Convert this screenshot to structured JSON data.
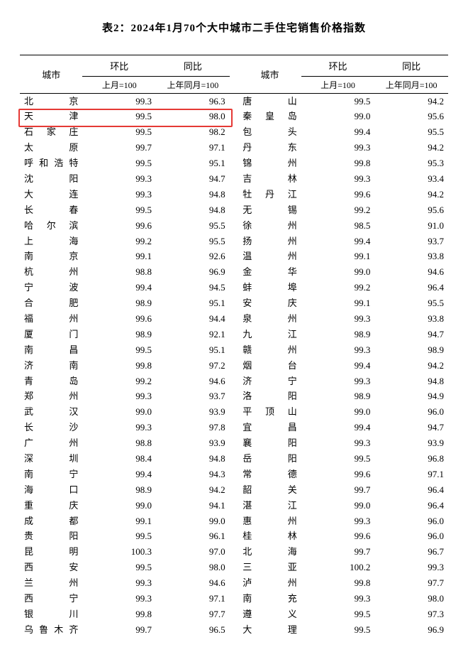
{
  "title": "表2：2024年1月70个大中城市二手住宅销售价格指数",
  "headers": {
    "city": "城市",
    "mom": "环比",
    "yoy": "同比",
    "mom_sub": "上月=100",
    "yoy_sub": "上年同月=100"
  },
  "highlight_color": "#e53935",
  "highlight_row_index": 1,
  "rows_left": [
    {
      "city": "北　　京",
      "mom": "99.3",
      "yoy": "96.3"
    },
    {
      "city": "天　　津",
      "mom": "99.5",
      "yoy": "98.0"
    },
    {
      "city": "石 家 庄",
      "mom": "99.5",
      "yoy": "98.2"
    },
    {
      "city": "太　　原",
      "mom": "99.7",
      "yoy": "97.1"
    },
    {
      "city": "呼和浩特",
      "mom": "99.5",
      "yoy": "95.1"
    },
    {
      "city": "沈　　阳",
      "mom": "99.3",
      "yoy": "94.7"
    },
    {
      "city": "大　　连",
      "mom": "99.3",
      "yoy": "94.8"
    },
    {
      "city": "长　　春",
      "mom": "99.5",
      "yoy": "94.8"
    },
    {
      "city": "哈 尔 滨",
      "mom": "99.6",
      "yoy": "95.5"
    },
    {
      "city": "上　　海",
      "mom": "99.2",
      "yoy": "95.5"
    },
    {
      "city": "南　　京",
      "mom": "99.1",
      "yoy": "92.6"
    },
    {
      "city": "杭　　州",
      "mom": "98.8",
      "yoy": "96.9"
    },
    {
      "city": "宁　　波",
      "mom": "99.4",
      "yoy": "94.5"
    },
    {
      "city": "合　　肥",
      "mom": "98.9",
      "yoy": "95.1"
    },
    {
      "city": "福　　州",
      "mom": "99.6",
      "yoy": "94.4"
    },
    {
      "city": "厦　　门",
      "mom": "98.9",
      "yoy": "92.1"
    },
    {
      "city": "南　　昌",
      "mom": "99.5",
      "yoy": "95.1"
    },
    {
      "city": "济　　南",
      "mom": "99.8",
      "yoy": "97.2"
    },
    {
      "city": "青　　岛",
      "mom": "99.2",
      "yoy": "94.6"
    },
    {
      "city": "郑　　州",
      "mom": "99.3",
      "yoy": "93.7"
    },
    {
      "city": "武　　汉",
      "mom": "99.0",
      "yoy": "93.9"
    },
    {
      "city": "长　　沙",
      "mom": "99.3",
      "yoy": "97.8"
    },
    {
      "city": "广　　州",
      "mom": "98.8",
      "yoy": "93.9"
    },
    {
      "city": "深　　圳",
      "mom": "98.4",
      "yoy": "94.8"
    },
    {
      "city": "南　　宁",
      "mom": "99.4",
      "yoy": "94.3"
    },
    {
      "city": "海　　口",
      "mom": "98.9",
      "yoy": "94.2"
    },
    {
      "city": "重　　庆",
      "mom": "99.0",
      "yoy": "94.1"
    },
    {
      "city": "成　　都",
      "mom": "99.1",
      "yoy": "99.0"
    },
    {
      "city": "贵　　阳",
      "mom": "99.5",
      "yoy": "96.1"
    },
    {
      "city": "昆　　明",
      "mom": "100.3",
      "yoy": "97.0"
    },
    {
      "city": "西　　安",
      "mom": "99.5",
      "yoy": "98.0"
    },
    {
      "city": "兰　　州",
      "mom": "99.3",
      "yoy": "94.6"
    },
    {
      "city": "西　　宁",
      "mom": "99.3",
      "yoy": "97.1"
    },
    {
      "city": "银　　川",
      "mom": "99.8",
      "yoy": "97.7"
    },
    {
      "city": "乌鲁木齐",
      "mom": "99.7",
      "yoy": "96.5"
    }
  ],
  "rows_right": [
    {
      "city": "唐　　山",
      "mom": "99.5",
      "yoy": "94.2"
    },
    {
      "city": "秦 皇 岛",
      "mom": "99.0",
      "yoy": "95.6"
    },
    {
      "city": "包　　头",
      "mom": "99.4",
      "yoy": "95.5"
    },
    {
      "city": "丹　　东",
      "mom": "99.3",
      "yoy": "94.2"
    },
    {
      "city": "锦　　州",
      "mom": "99.8",
      "yoy": "95.3"
    },
    {
      "city": "吉　　林",
      "mom": "99.3",
      "yoy": "93.4"
    },
    {
      "city": "牡 丹 江",
      "mom": "99.6",
      "yoy": "94.2"
    },
    {
      "city": "无　　锡",
      "mom": "99.2",
      "yoy": "95.6"
    },
    {
      "city": "徐　　州",
      "mom": "98.5",
      "yoy": "91.0"
    },
    {
      "city": "扬　　州",
      "mom": "99.4",
      "yoy": "93.7"
    },
    {
      "city": "温　　州",
      "mom": "99.1",
      "yoy": "93.8"
    },
    {
      "city": "金　　华",
      "mom": "99.0",
      "yoy": "94.6"
    },
    {
      "city": "蚌　　埠",
      "mom": "99.2",
      "yoy": "96.4"
    },
    {
      "city": "安　　庆",
      "mom": "99.1",
      "yoy": "95.5"
    },
    {
      "city": "泉　　州",
      "mom": "99.3",
      "yoy": "93.8"
    },
    {
      "city": "九　　江",
      "mom": "98.9",
      "yoy": "94.7"
    },
    {
      "city": "赣　　州",
      "mom": "99.3",
      "yoy": "98.9"
    },
    {
      "city": "烟　　台",
      "mom": "99.4",
      "yoy": "94.2"
    },
    {
      "city": "济　　宁",
      "mom": "99.3",
      "yoy": "94.8"
    },
    {
      "city": "洛　　阳",
      "mom": "98.9",
      "yoy": "94.9"
    },
    {
      "city": "平 顶 山",
      "mom": "99.0",
      "yoy": "96.0"
    },
    {
      "city": "宜　　昌",
      "mom": "99.4",
      "yoy": "94.7"
    },
    {
      "city": "襄　　阳",
      "mom": "99.3",
      "yoy": "93.9"
    },
    {
      "city": "岳　　阳",
      "mom": "99.5",
      "yoy": "96.8"
    },
    {
      "city": "常　　德",
      "mom": "99.6",
      "yoy": "97.1"
    },
    {
      "city": "韶　　关",
      "mom": "99.7",
      "yoy": "96.4"
    },
    {
      "city": "湛　　江",
      "mom": "99.0",
      "yoy": "96.4"
    },
    {
      "city": "惠　　州",
      "mom": "99.3",
      "yoy": "96.0"
    },
    {
      "city": "桂　　林",
      "mom": "99.6",
      "yoy": "96.0"
    },
    {
      "city": "北　　海",
      "mom": "99.7",
      "yoy": "96.7"
    },
    {
      "city": "三　　亚",
      "mom": "100.2",
      "yoy": "99.3"
    },
    {
      "city": "泸　　州",
      "mom": "99.8",
      "yoy": "97.7"
    },
    {
      "city": "南　　充",
      "mom": "99.3",
      "yoy": "98.0"
    },
    {
      "city": "遵　　义",
      "mom": "99.5",
      "yoy": "97.3"
    },
    {
      "city": "大　　理",
      "mom": "99.5",
      "yoy": "96.9"
    }
  ]
}
